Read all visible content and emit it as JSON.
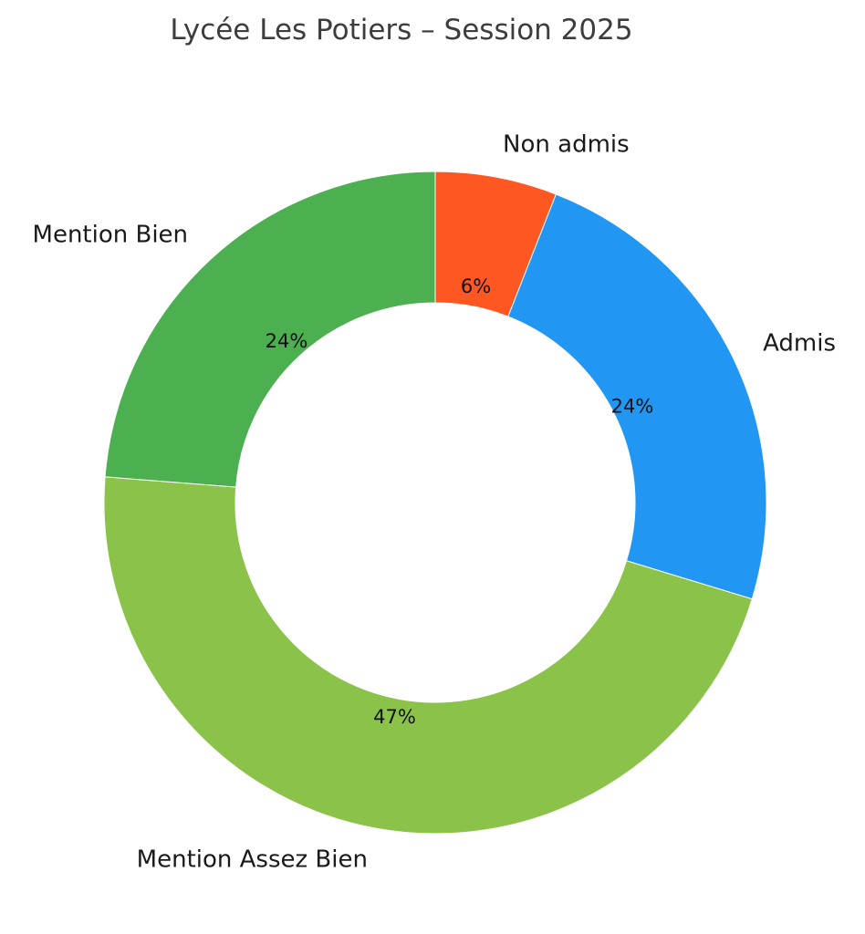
{
  "chart_data": {
    "type": "pie",
    "donut": true,
    "title": "Lycée Les Potiers – Session 2025",
    "start_angle_deg": 90,
    "direction": "clockwise",
    "slices": [
      {
        "label": "Non admis",
        "value": 6,
        "percent_label": "6%",
        "color": "#FF5722"
      },
      {
        "label": "Admis",
        "value": 24,
        "percent_label": "24%",
        "color": "#2196F3"
      },
      {
        "label": "Mention Assez Bien",
        "value": 47,
        "percent_label": "47%",
        "color": "#8BC34A"
      },
      {
        "label": "Mention Bien",
        "value": 24,
        "percent_label": "24%",
        "color": "#4CAF50"
      }
    ]
  }
}
